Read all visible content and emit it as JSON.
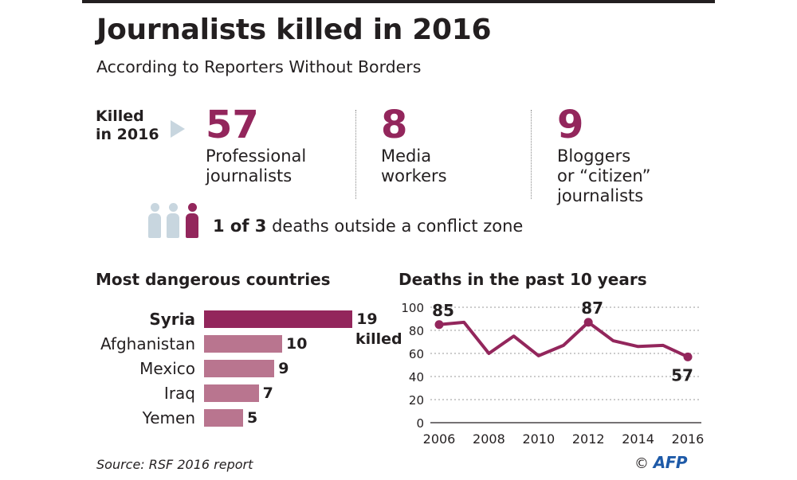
{
  "header": {
    "title": "Journalists killed in 2016",
    "subtitle": "According to Reporters Without Borders"
  },
  "killed": {
    "label": "Killed\nin 2016",
    "stats": [
      {
        "value": "57",
        "label": "Professional\njournalists"
      },
      {
        "value": "8",
        "label": "Media\nworkers"
      },
      {
        "value": "9",
        "label": "Bloggers\nor “citizen”\njournalists"
      }
    ]
  },
  "conflict": {
    "strong": "1 of 3",
    "rest": " deaths outside a conflict zone",
    "ratio": [
      1,
      3
    ]
  },
  "colors": {
    "accent": "#93265c",
    "bar_secondary": "#b9758f",
    "grey_icon": "#c8d6df"
  },
  "source": "Source: RSF 2016 report",
  "credit": {
    "symbol": "©",
    "brand": "AFP"
  },
  "chart_data": [
    {
      "type": "bar",
      "title": "Most dangerous countries",
      "categories": [
        "Syria",
        "Afghanistan",
        "Mexico",
        "Iraq",
        "Yemen"
      ],
      "values": [
        19,
        10,
        9,
        7,
        5
      ],
      "value_suffix": "killed",
      "orientation": "horizontal",
      "highlight": "Syria"
    },
    {
      "type": "line",
      "title": "Deaths in the past 10 years",
      "x": [
        2006,
        2007,
        2008,
        2009,
        2010,
        2011,
        2012,
        2013,
        2014,
        2015,
        2016
      ],
      "y": [
        85,
        87,
        60,
        75,
        58,
        67,
        87,
        71,
        66,
        67,
        57
      ],
      "xticks": [
        2006,
        2008,
        2010,
        2012,
        2014,
        2016
      ],
      "yticks": [
        0,
        20,
        40,
        60,
        80,
        100
      ],
      "ylim": [
        0,
        100
      ],
      "labeled_points": [
        {
          "x": 2006,
          "label": "85"
        },
        {
          "x": 2012,
          "label": "87"
        },
        {
          "x": 2016,
          "label": "57"
        }
      ],
      "grid": true
    }
  ]
}
